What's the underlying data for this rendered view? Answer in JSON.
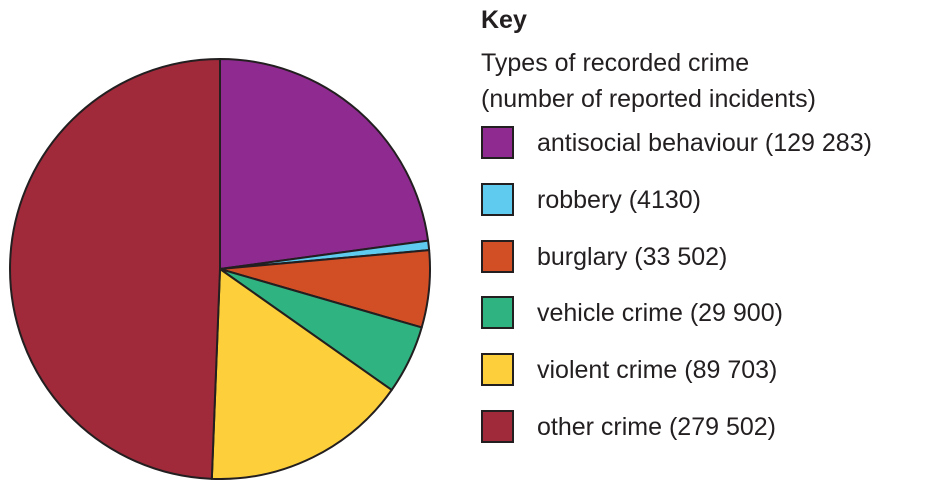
{
  "chart_data": {
    "type": "pie",
    "title": "",
    "legend": {
      "heading": "Key",
      "subtitle_line1": "Types of recorded crime",
      "subtitle_line2": "(number of reported incidents)",
      "placement": "right"
    },
    "slices": [
      {
        "label": "antisocial behaviour (129 283)",
        "value": 129283,
        "color": "#8f2a91"
      },
      {
        "label": "robbery (4130)",
        "value": 4130,
        "color": "#5ecbef"
      },
      {
        "label": "burglary (33 502)",
        "value": 33502,
        "color": "#d24e24"
      },
      {
        "label": "vehicle crime (29 900)",
        "value": 29900,
        "color": "#2fb381"
      },
      {
        "label": "violent crime (89 703)",
        "value": 89703,
        "color": "#fdd03b"
      },
      {
        "label": "other crime (279 502)",
        "value": 279502,
        "color": "#a0293a"
      }
    ]
  }
}
